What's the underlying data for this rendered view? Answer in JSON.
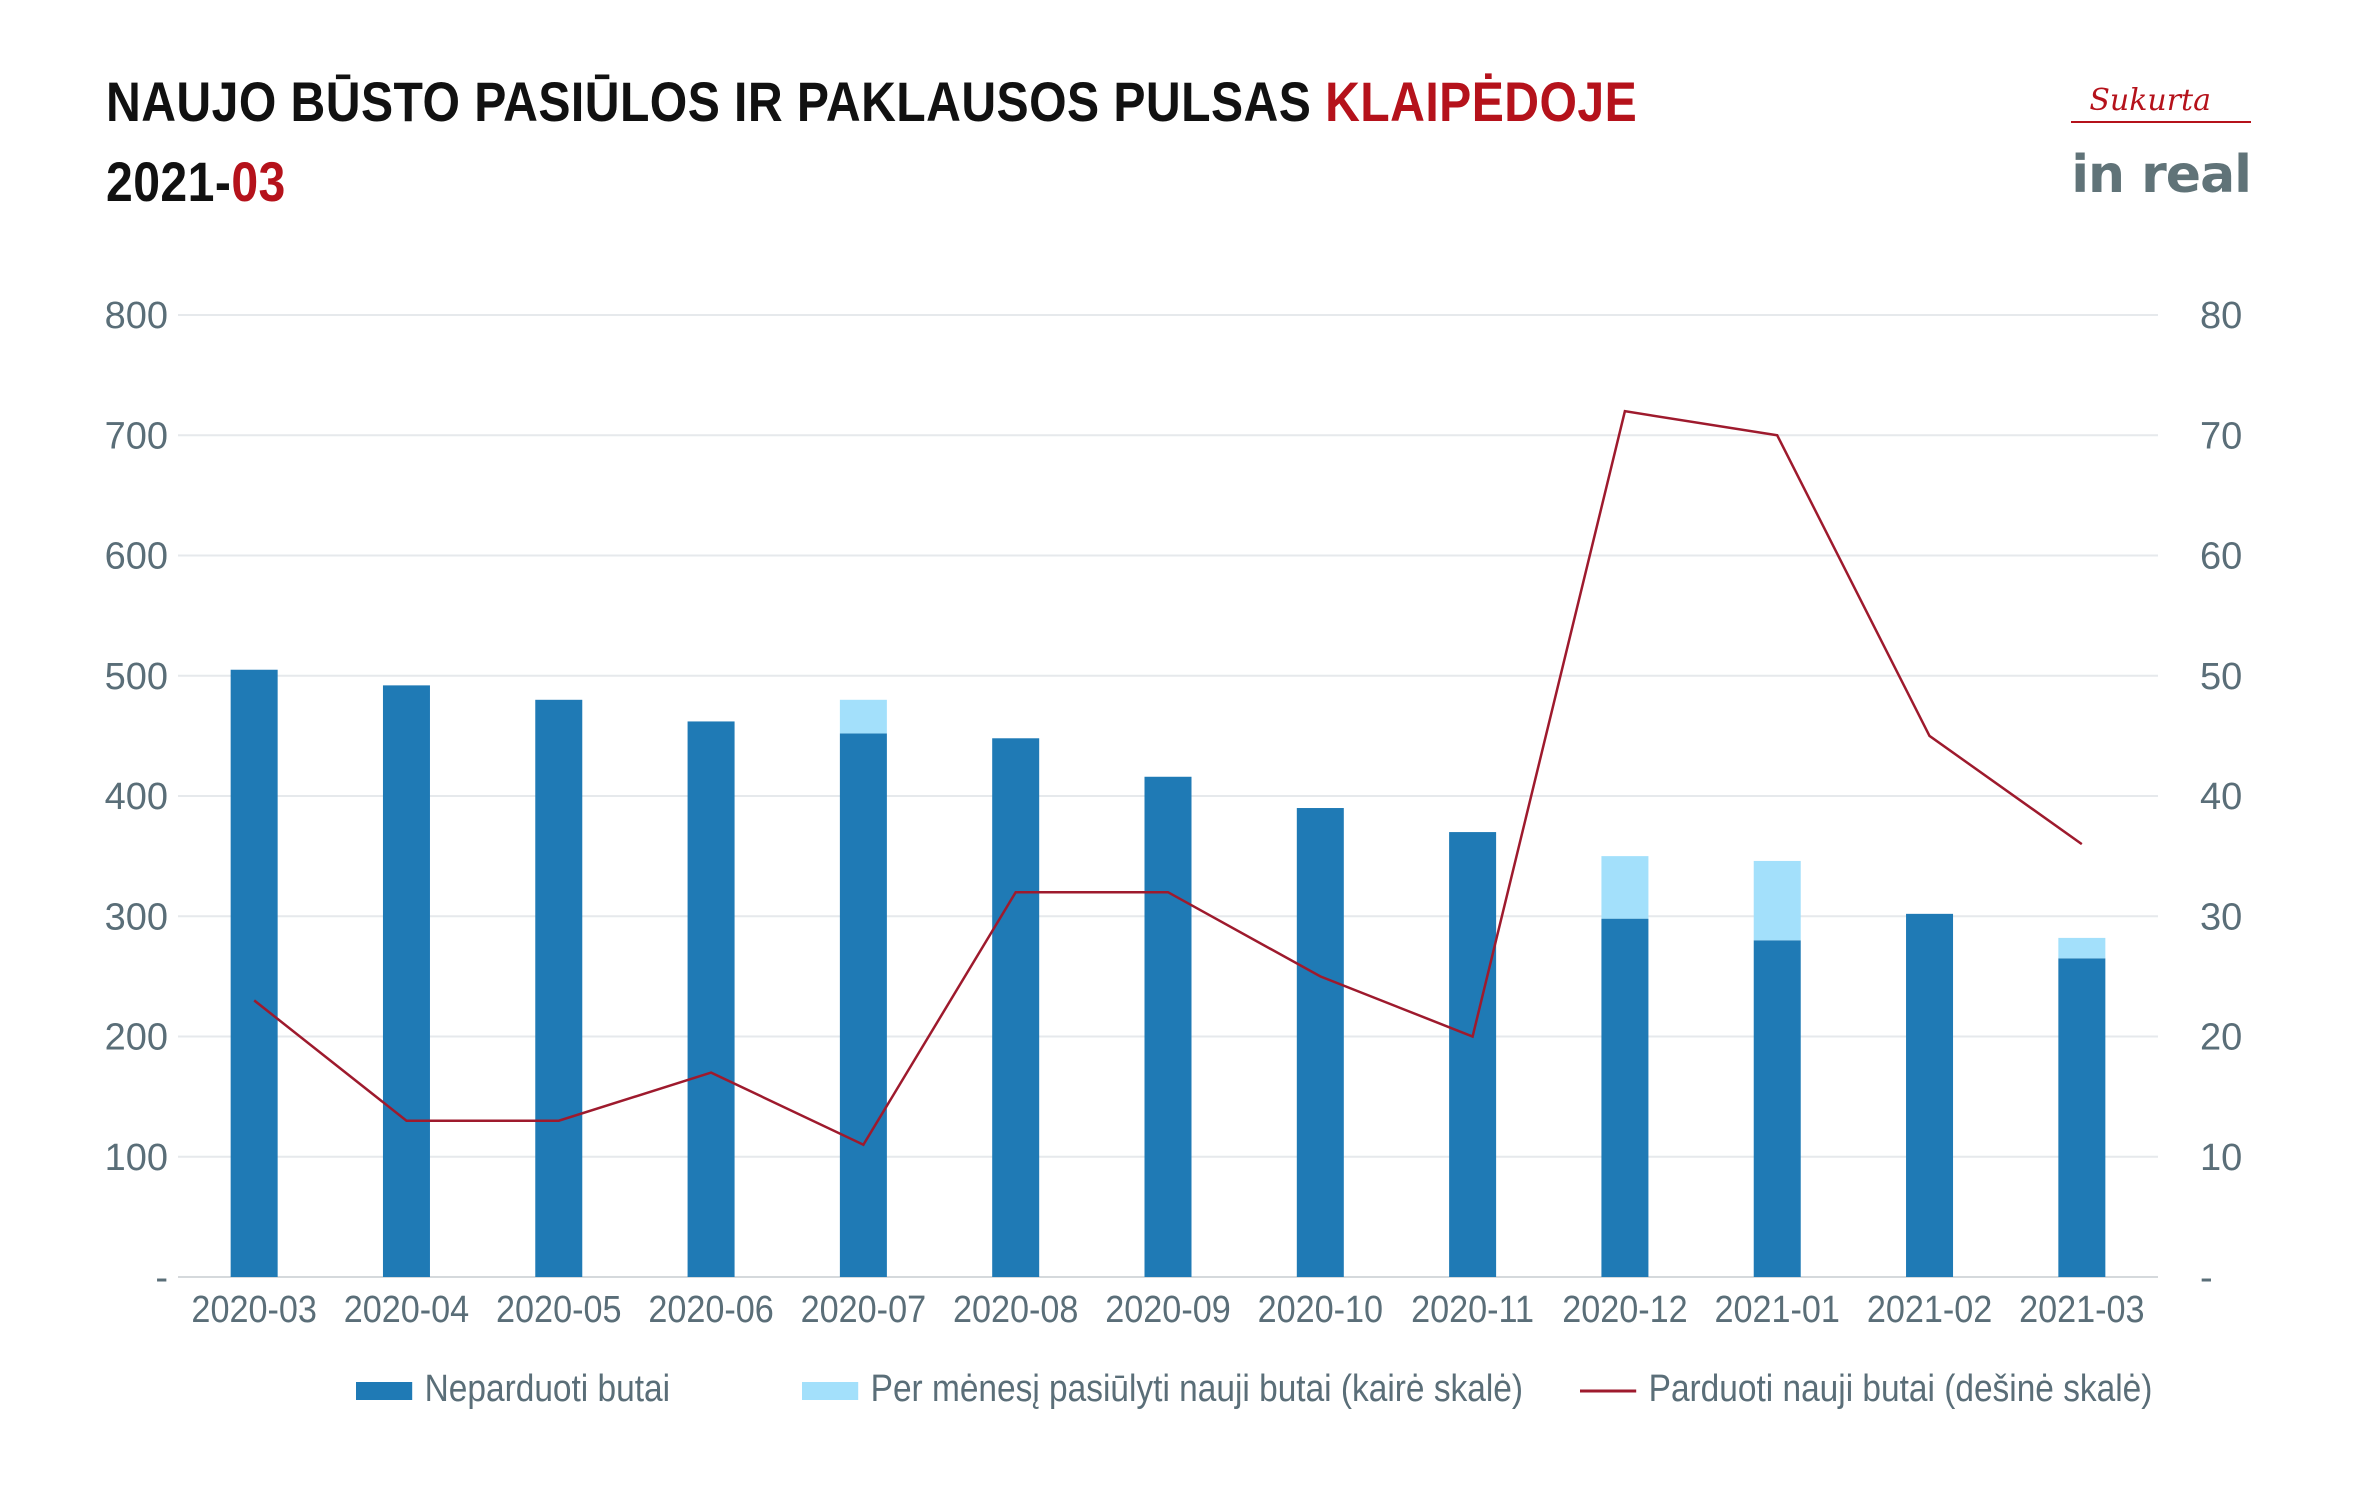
{
  "header": {
    "title_part1": "NAUJO BŪSTO PASIŪLOS IR PAKLAUSOS PULSAS ",
    "title_highlight": "KLAIPĖDOJE",
    "subtitle_part1": "2021-",
    "subtitle_highlight": "03"
  },
  "logo": {
    "top_text": "Sukurta",
    "brand_text": "in real"
  },
  "colors": {
    "unsold": "#1f7ab5",
    "offered": "#a3e0fb",
    "sold_line": "#9e1a2d",
    "accent": "#b5121b",
    "axis_text": "#5a6e78",
    "grid": "#e6e9ec"
  },
  "chart_data": {
    "type": "bar",
    "categories": [
      "2020-03",
      "2020-04",
      "2020-05",
      "2020-06",
      "2020-07",
      "2020-08",
      "2020-09",
      "2020-10",
      "2020-11",
      "2020-12",
      "2021-01",
      "2021-02",
      "2021-03"
    ],
    "series": [
      {
        "name": "Neparduoti butai",
        "kind": "bar",
        "axis": "left",
        "values": [
          505,
          492,
          480,
          462,
          452,
          448,
          416,
          390,
          370,
          298,
          280,
          302,
          265
        ]
      },
      {
        "name": "Per mėnesį pasiūlyti nauji butai (kairė skalė)",
        "kind": "stacked-bar",
        "axis": "left",
        "values": [
          0,
          0,
          0,
          0,
          28,
          0,
          0,
          0,
          0,
          52,
          66,
          0,
          17
        ]
      },
      {
        "name": "Parduoti nauji butai (dešinė skalė)",
        "kind": "line",
        "axis": "right",
        "values": [
          23,
          13,
          13,
          17,
          11,
          32,
          32,
          25,
          20,
          72,
          70,
          45,
          36
        ]
      }
    ],
    "left_axis": {
      "ylim": [
        0,
        800
      ],
      "ticks": [
        "-",
        "100",
        "200",
        "300",
        "400",
        "500",
        "600",
        "700",
        "800"
      ]
    },
    "right_axis": {
      "ylim": [
        0,
        80
      ],
      "ticks": [
        "-",
        "10",
        "20",
        "30",
        "40",
        "50",
        "60",
        "70",
        "80"
      ]
    },
    "grid": true,
    "legend_position": "bottom"
  }
}
